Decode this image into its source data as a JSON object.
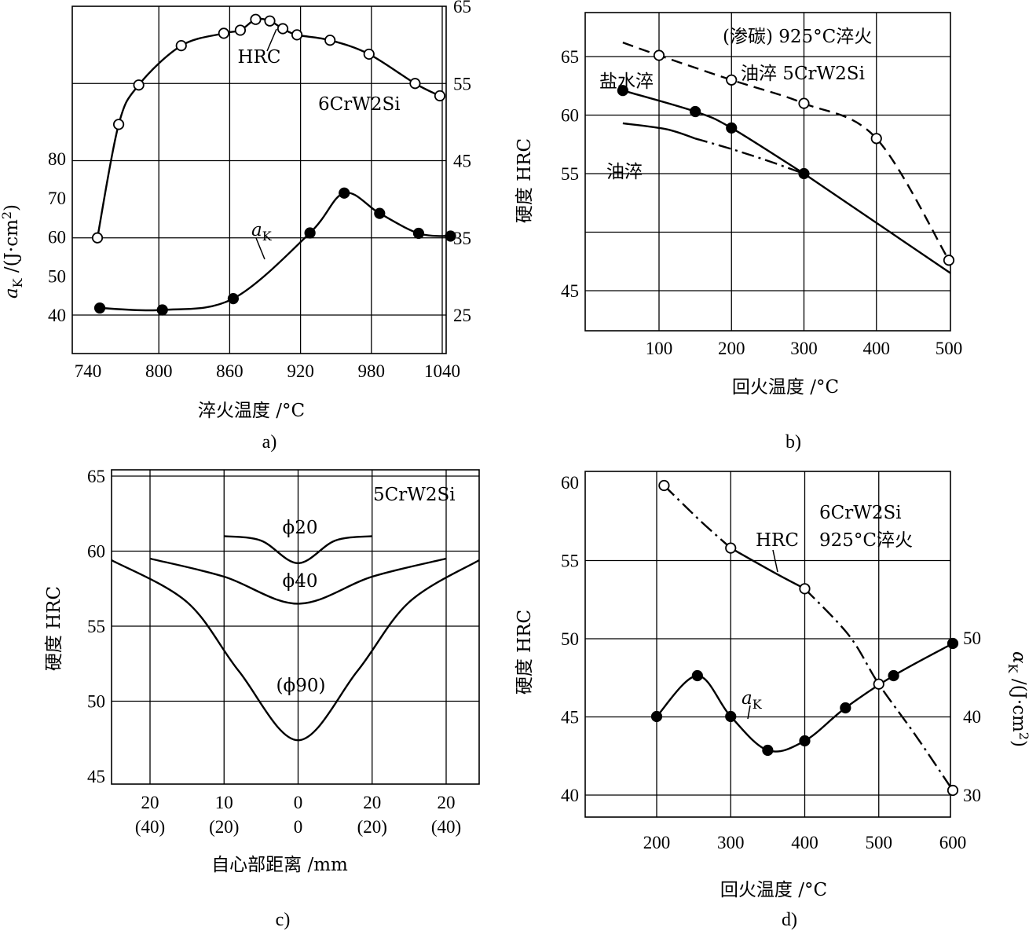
{
  "chart_data": [
    {
      "panel": "a",
      "type": "line",
      "caption": "a)",
      "xlabel": "淬火温度 /°C",
      "xlim": [
        740,
        1050
      ],
      "xticks": [
        740,
        800,
        860,
        920,
        980,
        1040
      ],
      "ylabel_left": "aK /(J·cm²)",
      "ylabel_left_main": "a",
      "ylabel_left_sub": "K",
      "ylabel_left_unit": " /(J·cm",
      "ylabel_left_sup": "2",
      "ylabel_left_close": ")",
      "ylim_left": [
        30,
        90
      ],
      "yticks_left": [
        40,
        50,
        60,
        70,
        80
      ],
      "ylim_right": [
        20,
        65
      ],
      "yticks_right": [
        25,
        35,
        45,
        55,
        65
      ],
      "annotations": [
        "HRC",
        "6CrW2Si",
        "aK"
      ],
      "ann_ak_main": "a",
      "ann_ak_sub": "K",
      "series": [
        {
          "name": "HRC",
          "axis": "right",
          "marker": "open",
          "x": [
            748,
            766,
            783,
            819,
            855,
            869,
            882,
            894,
            905,
            917,
            945,
            978,
            1017,
            1038
          ],
          "y": [
            35,
            49.7,
            54.8,
            59.9,
            61.5,
            61.9,
            63.3,
            63.1,
            62.1,
            61.3,
            60.6,
            58.8,
            55,
            53.4
          ]
        },
        {
          "name": "aK",
          "axis": "left",
          "marker": "filled",
          "x": [
            750,
            803,
            863,
            928,
            957,
            987,
            1020,
            1047
          ],
          "y": [
            41.8,
            41.3,
            44.2,
            61,
            71.2,
            66,
            60.9,
            60.2
          ]
        }
      ]
    },
    {
      "panel": "b",
      "type": "line",
      "caption": "b)",
      "xlabel": "回火温度 /°C",
      "xlim": [
        0,
        510
      ],
      "xticks": [
        100,
        200,
        300,
        400,
        500
      ],
      "ylabel": "硬度 HRC",
      "ylim": [
        42,
        67
      ],
      "yticks": [
        45,
        55,
        60,
        65
      ],
      "annotations": [
        "(渗碳) 925°C淬火",
        "油淬 5CrW2Si",
        "盐水淬",
        "油淬"
      ],
      "series": [
        {
          "name": "(渗碳) 925°C淬火",
          "style": "dashed",
          "marker": "open",
          "x": [
            100,
            200,
            300,
            400,
            500
          ],
          "y": [
            65.1,
            63,
            61,
            58,
            47.6
          ]
        },
        {
          "name": "盐水淬",
          "style": "solid",
          "marker": "filled",
          "x": [
            50,
            150,
            200,
            300
          ],
          "y": [
            62.1,
            60.3,
            58.9,
            55
          ]
        },
        {
          "name": "油淬",
          "style": "dashdot",
          "marker": "none",
          "x": [
            50,
            150,
            300,
            510
          ],
          "y": [
            59.3,
            58,
            55,
            46.5
          ]
        }
      ]
    },
    {
      "panel": "c",
      "type": "line",
      "caption": "c)",
      "xlabel": "自心部距离 /mm",
      "xlim": [
        -25,
        25
      ],
      "xticks": [
        -20,
        -10,
        0,
        10,
        20
      ],
      "xtick_labels_top": [
        "20",
        "10",
        "0",
        "20",
        "20"
      ],
      "xtick_labels_bottom": [
        "(40)",
        "(20)",
        "0",
        "(20)",
        "(40)"
      ],
      "ylabel": "硬度 HRC",
      "ylim": [
        44.3,
        65
      ],
      "yticks": [
        45,
        50,
        55,
        60,
        65
      ],
      "annotations": [
        "5CrW2Si",
        "ϕ20",
        "ϕ40",
        "(ϕ90)"
      ],
      "series": [
        {
          "name": "ϕ20",
          "x": [
            -10,
            -5,
            0,
            5,
            10
          ],
          "y": [
            61,
            60.7,
            59.2,
            60.7,
            61
          ]
        },
        {
          "name": "ϕ40",
          "x": [
            -20,
            -10,
            0,
            10,
            20
          ],
          "y": [
            59.5,
            58.3,
            56.5,
            58.3,
            59.5
          ]
        },
        {
          "name": "(ϕ90)",
          "x": [
            -25,
            -15,
            -8,
            0,
            8,
            15,
            25
          ],
          "y": [
            59.4,
            56.6,
            52,
            47.4,
            52,
            56.6,
            59.4
          ]
        }
      ]
    },
    {
      "panel": "d",
      "type": "line",
      "caption": "d)",
      "xlabel": "回火温度 /°C",
      "xlim": [
        110,
        610
      ],
      "xticks": [
        200,
        300,
        400,
        500,
        600
      ],
      "ylabel": "硬度 HRC",
      "ylim": [
        38.3,
        60.5
      ],
      "yticks": [
        40,
        45,
        50,
        55,
        60
      ],
      "ylabel_right": "αK /(J·cm²)",
      "ylabel_right_main": "α",
      "ylabel_right_sub": "K",
      "ylabel_right_unit": " /(J·cm",
      "ylabel_right_sup": "2",
      "ylabel_right_close": ")",
      "ylim_right": [
        26.6,
        71
      ],
      "yticks_right": [
        30,
        40,
        50
      ],
      "annotations": [
        "6CrW2Si",
        "HRC",
        "925°C淬火",
        "aK"
      ],
      "ann_ak_main": "a",
      "ann_ak_sub": "K",
      "series": [
        {
          "name": "HRC",
          "axis": "left",
          "style": "dashdot",
          "marker": "open",
          "x": [
            210,
            300,
            400,
            500,
            600
          ],
          "y": [
            59.8,
            55.8,
            53.2,
            47.1,
            40.3
          ]
        },
        {
          "name": "aK",
          "axis": "right",
          "style": "solid",
          "marker": "filled",
          "x": [
            200,
            255,
            300,
            350,
            400,
            455,
            520,
            600
          ],
          "y": [
            40,
            45.2,
            40,
            35.7,
            36.9,
            41.1,
            45.2,
            49.3
          ]
        }
      ]
    }
  ]
}
